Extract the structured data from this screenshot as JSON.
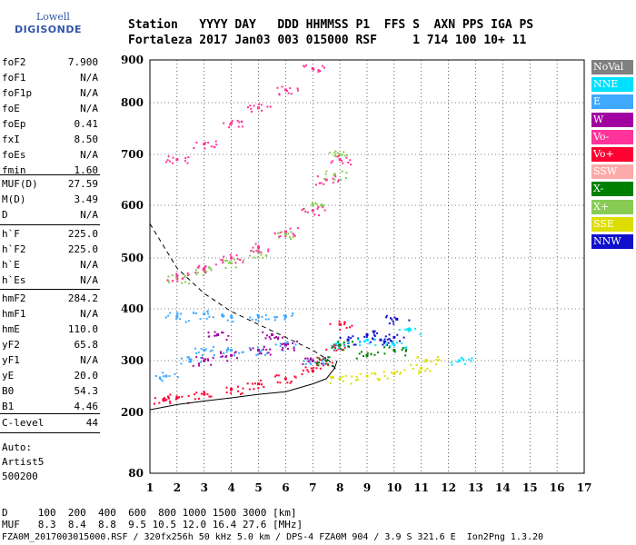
{
  "logo": {
    "line1": "Lowell",
    "line2": "DIGISONDE"
  },
  "header": {
    "row1": "Station   YYYY DAY   DDD HHMMSS P1  FFS S  AXN PPS IGA PS",
    "row2": "Fortaleza 2017 Jan03 003 015000 RSF     1 714 100 10+ 11"
  },
  "params": {
    "group1": [
      {
        "k": "foF2",
        "v": "7.900"
      },
      {
        "k": "foF1",
        "v": "N/A"
      },
      {
        "k": "foF1p",
        "v": "N/A"
      },
      {
        "k": "foE",
        "v": "N/A"
      },
      {
        "k": "foEp",
        "v": "0.41"
      },
      {
        "k": "fxI",
        "v": "8.50"
      },
      {
        "k": "foEs",
        "v": "N/A"
      },
      {
        "k": "fmin",
        "v": "1.60"
      }
    ],
    "group2": [
      {
        "k": "MUF(D)",
        "v": "27.59"
      },
      {
        "k": "M(D)",
        "v": "3.49"
      },
      {
        "k": "D",
        "v": "N/A"
      }
    ],
    "group3": [
      {
        "k": "h`F",
        "v": "225.0"
      },
      {
        "k": "h`F2",
        "v": "225.0"
      },
      {
        "k": "h`E",
        "v": "N/A"
      },
      {
        "k": "h`Es",
        "v": "N/A"
      }
    ],
    "group4": [
      {
        "k": "hmF2",
        "v": "284.2"
      },
      {
        "k": "hmF1",
        "v": "N/A"
      },
      {
        "k": "hmE",
        "v": "110.0"
      },
      {
        "k": "yF2",
        "v": "65.8"
      },
      {
        "k": "yF1",
        "v": "N/A"
      },
      {
        "k": "yE",
        "v": "20.0"
      },
      {
        "k": "B0",
        "v": "54.3"
      },
      {
        "k": "B1",
        "v": "4.46"
      }
    ],
    "group5": [
      {
        "k": "C-level",
        "v": "44"
      }
    ],
    "auto": [
      "Auto:",
      "Artist5",
      "500200"
    ]
  },
  "legend": [
    {
      "label": "NoVal",
      "color": "#808080"
    },
    {
      "label": "NNE",
      "color": "#00e0ff"
    },
    {
      "label": "E",
      "color": "#3fa8ff"
    },
    {
      "label": "W",
      "color": "#a000a0"
    },
    {
      "label": "Vo-",
      "color": "#ff3399"
    },
    {
      "label": "Vo+",
      "color": "#ff0033"
    },
    {
      "label": "SSW",
      "color": "#ffaaaa"
    },
    {
      "label": "X-",
      "color": "#008000"
    },
    {
      "label": "X+",
      "color": "#88cc55"
    },
    {
      "label": "SSE",
      "color": "#dddd00"
    },
    {
      "label": "NNW",
      "color": "#1010cc"
    }
  ],
  "footer": {
    "line1": "D     100  200  400  600  800 1000 1500 3000 [km]",
    "line2": "MUF   8.3  8.4  8.8  9.5 10.5 12.0 16.4 27.6 [MHz]",
    "line3": "FZA0M_2017003015000.RSF / 320fx256h 50 kHz 5.0 km / DPS-4 FZA0M 904 / 3.9 S 321.6 E  Ion2Png 1.3.20"
  },
  "chart_data": {
    "type": "scatter",
    "title": "",
    "xlabel": "",
    "ylabel": "",
    "xlim": [
      1,
      17
    ],
    "ylim": [
      80,
      900
    ],
    "x_ticks": [
      1,
      2,
      3,
      4,
      5,
      6,
      7,
      8,
      9,
      10,
      11,
      12,
      13,
      14,
      15,
      16,
      17
    ],
    "y_ticks": [
      80,
      200,
      300,
      400,
      500,
      600,
      700,
      800,
      900
    ],
    "grid": true,
    "series": [
      {
        "name": "Vo+",
        "color": "#ff0033",
        "points": [
          [
            1.5,
            225
          ],
          [
            2,
            228
          ],
          [
            3,
            235
          ],
          [
            4,
            245
          ],
          [
            5,
            255
          ],
          [
            6,
            265
          ],
          [
            7,
            280
          ],
          [
            7.5,
            300
          ],
          [
            7.8,
            330
          ],
          [
            8,
            370
          ]
        ]
      },
      {
        "name": "E",
        "color": "#3fa8ff",
        "points": [
          [
            1.6,
            270
          ],
          [
            2.5,
            300
          ],
          [
            3,
            320
          ],
          [
            4,
            320
          ],
          [
            5,
            320
          ],
          [
            6,
            330
          ],
          [
            2,
            385
          ],
          [
            3,
            390
          ],
          [
            4,
            385
          ],
          [
            5,
            385
          ],
          [
            6,
            385
          ],
          [
            7,
            300
          ]
        ]
      },
      {
        "name": "W",
        "color": "#a000a0",
        "points": [
          [
            3,
            300
          ],
          [
            4,
            310
          ],
          [
            5,
            320
          ],
          [
            6,
            330
          ],
          [
            7,
            300
          ],
          [
            3.5,
            350
          ],
          [
            5.5,
            350
          ]
        ]
      },
      {
        "name": "X+",
        "color": "#88cc55",
        "points": [
          [
            2,
            460
          ],
          [
            3,
            475
          ],
          [
            4,
            490
          ],
          [
            5,
            510
          ],
          [
            6,
            545
          ],
          [
            7,
            600
          ],
          [
            7.8,
            660
          ],
          [
            8,
            700
          ]
        ]
      },
      {
        "name": "Vo-",
        "color": "#ff3399",
        "points": [
          [
            2,
            465
          ],
          [
            3,
            480
          ],
          [
            4,
            500
          ],
          [
            5,
            520
          ],
          [
            6,
            550
          ],
          [
            7,
            590
          ],
          [
            7.5,
            650
          ],
          [
            8,
            690
          ],
          [
            2,
            690
          ],
          [
            3,
            720
          ],
          [
            4,
            760
          ],
          [
            5,
            790
          ],
          [
            6,
            830
          ],
          [
            7,
            880
          ]
        ]
      },
      {
        "name": "NNW",
        "color": "#1010cc",
        "points": [
          [
            8.3,
            340
          ],
          [
            9,
            350
          ],
          [
            9.5,
            340
          ],
          [
            10,
            345
          ],
          [
            10.1,
            380
          ]
        ]
      },
      {
        "name": "SSE",
        "color": "#dddd00",
        "points": [
          [
            8,
            265
          ],
          [
            9,
            270
          ],
          [
            10,
            275
          ],
          [
            11,
            285
          ],
          [
            11.2,
            300
          ]
        ]
      },
      {
        "name": "NNE",
        "color": "#00e0ff",
        "points": [
          [
            8,
            330
          ],
          [
            9,
            340
          ],
          [
            10,
            330
          ],
          [
            10.5,
            360
          ],
          [
            12.4,
            300
          ]
        ]
      },
      {
        "name": "X-",
        "color": "#008000",
        "points": [
          [
            7.5,
            300
          ],
          [
            8,
            330
          ],
          [
            9,
            310
          ],
          [
            10,
            320
          ]
        ]
      }
    ],
    "profile_curve": [
      [
        1,
        205
      ],
      [
        2,
        215
      ],
      [
        3,
        222
      ],
      [
        4,
        228
      ],
      [
        5,
        235
      ],
      [
        6,
        240
      ],
      [
        7,
        255
      ],
      [
        7.5,
        265
      ],
      [
        7.8,
        285
      ],
      [
        7.9,
        300
      ]
    ],
    "dashed_curve": [
      [
        1,
        565
      ],
      [
        2,
        480
      ],
      [
        3,
        430
      ],
      [
        4,
        395
      ],
      [
        5,
        370
      ],
      [
        6,
        345
      ],
      [
        7,
        320
      ],
      [
        7.6,
        300
      ],
      [
        7.9,
        280
      ]
    ]
  }
}
